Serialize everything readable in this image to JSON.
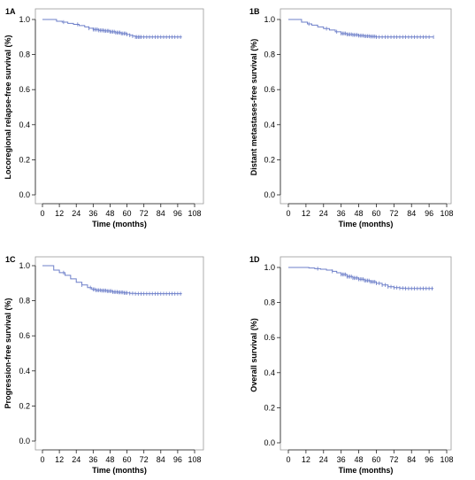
{
  "styles": {
    "curve_color": "#6d7fc9",
    "axis_color": "#222222",
    "frame_color": "#9a9a9a"
  },
  "chart_data": [
    {
      "type": "line",
      "panel": "1A",
      "xlabel": "Time (months)",
      "ylabel": "Locoregional relapse-free survival (%)",
      "xlim": [
        0,
        108
      ],
      "ylim": [
        0.0,
        1.0
      ],
      "xticks": [
        0,
        12,
        24,
        36,
        48,
        60,
        72,
        84,
        96,
        108
      ],
      "yticks": [
        "0.0",
        "0.2",
        "0.4",
        "0.6",
        "0.8",
        "1.0"
      ],
      "series": [
        {
          "x": [
            0,
            7,
            10,
            14,
            18,
            22,
            26,
            30,
            33,
            36,
            40,
            44,
            48,
            52,
            56,
            60,
            62,
            64,
            66,
            72,
            80,
            90,
            99
          ],
          "y": [
            1.0,
            1.0,
            0.99,
            0.985,
            0.978,
            0.972,
            0.965,
            0.958,
            0.95,
            0.943,
            0.938,
            0.935,
            0.93,
            0.925,
            0.92,
            0.915,
            0.91,
            0.905,
            0.9,
            0.9,
            0.9,
            0.9,
            0.9
          ]
        }
      ],
      "censor_x": [
        15,
        25,
        33,
        36,
        37,
        38,
        39,
        40,
        41,
        42,
        43,
        44,
        45,
        46,
        47,
        48,
        49,
        50,
        51,
        52,
        53,
        54,
        55,
        56,
        57,
        58,
        59,
        60,
        62,
        64,
        66,
        67,
        68,
        69,
        70,
        72,
        74,
        76,
        78,
        80,
        82,
        84,
        86,
        88,
        90,
        92,
        94,
        96,
        98
      ]
    },
    {
      "type": "line",
      "panel": "1B",
      "xlabel": "Time (months)",
      "ylabel": "Distant metastases-free survival (%)",
      "xlim": [
        0,
        108
      ],
      "ylim": [
        0.0,
        1.0
      ],
      "xticks": [
        0,
        12,
        24,
        36,
        48,
        60,
        72,
        84,
        96,
        108
      ],
      "yticks": [
        "0.0",
        "0.2",
        "0.4",
        "0.6",
        "0.8",
        "1.0"
      ],
      "series": [
        {
          "x": [
            0,
            6,
            9,
            13,
            16,
            20,
            24,
            28,
            32,
            36,
            40,
            44,
            48,
            52,
            56,
            60,
            66,
            72,
            84,
            99
          ],
          "y": [
            1.0,
            1.0,
            0.985,
            0.975,
            0.968,
            0.958,
            0.948,
            0.94,
            0.93,
            0.92,
            0.915,
            0.912,
            0.908,
            0.905,
            0.903,
            0.9,
            0.9,
            0.9,
            0.9,
            0.9
          ]
        }
      ],
      "censor_x": [
        14,
        26,
        33,
        36,
        37,
        38,
        39,
        40,
        41,
        42,
        43,
        44,
        45,
        46,
        47,
        48,
        49,
        50,
        51,
        52,
        53,
        54,
        55,
        56,
        57,
        58,
        59,
        60,
        62,
        64,
        66,
        68,
        70,
        72,
        74,
        76,
        78,
        80,
        82,
        84,
        86,
        88,
        90,
        92,
        94,
        96,
        99
      ]
    },
    {
      "type": "line",
      "panel": "1C",
      "xlabel": "Time (months)",
      "ylabel": "Progression-free survival (%)",
      "xlim": [
        0,
        108
      ],
      "ylim": [
        0.0,
        1.0
      ],
      "xticks": [
        0,
        12,
        24,
        36,
        48,
        60,
        72,
        84,
        96,
        108
      ],
      "yticks": [
        "0.0",
        "0.2",
        "0.4",
        "0.6",
        "0.8",
        "1.0"
      ],
      "series": [
        {
          "x": [
            0,
            5,
            8,
            12,
            16,
            20,
            24,
            28,
            32,
            35,
            38,
            42,
            46,
            50,
            54,
            58,
            62,
            66,
            72,
            84,
            99
          ],
          "y": [
            1.0,
            1.0,
            0.975,
            0.96,
            0.945,
            0.925,
            0.905,
            0.89,
            0.875,
            0.865,
            0.86,
            0.858,
            0.855,
            0.85,
            0.848,
            0.845,
            0.842,
            0.84,
            0.84,
            0.84,
            0.84
          ]
        }
      ],
      "censor_x": [
        15,
        28,
        34,
        36,
        37,
        38,
        39,
        40,
        41,
        42,
        43,
        44,
        45,
        46,
        47,
        48,
        49,
        50,
        51,
        52,
        53,
        54,
        55,
        56,
        57,
        58,
        59,
        60,
        62,
        64,
        66,
        68,
        70,
        72,
        74,
        76,
        78,
        80,
        82,
        84,
        86,
        88,
        90,
        92,
        94,
        96,
        98
      ]
    },
    {
      "type": "line",
      "panel": "1D",
      "xlabel": "Time (months)",
      "ylabel": "Overall survival (%)",
      "xlim": [
        0,
        108
      ],
      "ylim": [
        0.0,
        1.0
      ],
      "xticks": [
        0,
        12,
        24,
        36,
        48,
        60,
        72,
        84,
        96,
        108
      ],
      "yticks": [
        "0.0",
        "0.2",
        "0.4",
        "0.6",
        "0.8",
        "1.0"
      ],
      "series": [
        {
          "x": [
            0,
            10,
            14,
            18,
            22,
            26,
            30,
            33,
            36,
            40,
            44,
            48,
            52,
            56,
            60,
            64,
            68,
            72,
            76,
            80,
            90,
            99
          ],
          "y": [
            1.0,
            1.0,
            0.997,
            0.993,
            0.99,
            0.985,
            0.978,
            0.97,
            0.96,
            0.948,
            0.94,
            0.933,
            0.925,
            0.918,
            0.91,
            0.9,
            0.89,
            0.885,
            0.882,
            0.88,
            0.88,
            0.88
          ]
        }
      ],
      "censor_x": [
        20,
        30,
        36,
        37,
        38,
        39,
        40,
        41,
        42,
        43,
        44,
        45,
        46,
        47,
        48,
        49,
        50,
        51,
        52,
        53,
        54,
        55,
        56,
        57,
        58,
        59,
        60,
        62,
        64,
        66,
        68,
        70,
        72,
        74,
        76,
        78,
        80,
        82,
        84,
        86,
        88,
        90,
        92,
        94,
        96,
        98
      ]
    }
  ]
}
